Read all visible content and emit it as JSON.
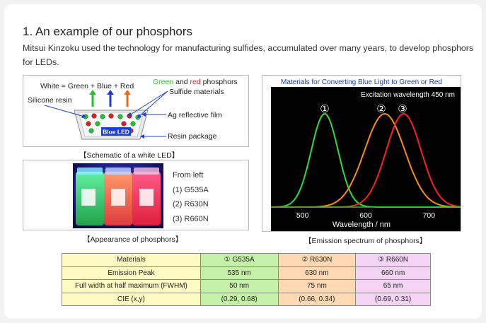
{
  "header": {
    "title": "1. An example of our phosphors",
    "description": "Mitsui Kinzoku used the technology for manufacturing sulfides, accumulated over many years, to develop phosphors for LEDs."
  },
  "schematic": {
    "white_formula": "White = Green + Blue + Red",
    "phosphor_label_green": "Green",
    "phosphor_label_and": " and ",
    "phosphor_label_red": "red",
    "phosphor_label_rest": " phosphors",
    "sulfide_label": "Sulfide materials",
    "silicone_label": "Silicone resin",
    "ag_label": "Ag reflective film",
    "resin_label": "Resin package",
    "led_label": "Blue LED",
    "caption": "【Schematic of a white LED】",
    "colors": {
      "green": "#2bbf2b",
      "red": "#e02020",
      "blue": "#1a3fd6",
      "orange": "#f06a1a"
    }
  },
  "appearance": {
    "heading": "From left",
    "items": [
      "(1) G535A",
      "(2) R630N",
      "(3) R660N"
    ],
    "caption": "【Appearance of phosphors】"
  },
  "spectrum": {
    "title": "Materials for Converting Blue Light to Green or Red",
    "excitation": "Excitation wavelength 450 nm",
    "caption": "【Emission spectrum of phosphors】",
    "marker_1": "①",
    "marker_2": "②",
    "marker_3": "③"
  },
  "chart_data": {
    "type": "line",
    "title": "Materials for Converting Blue Light to Green or Red",
    "xlabel": "Wavelength / nm",
    "ylabel": "",
    "xlim": [
      450,
      750
    ],
    "x_ticks": [
      500,
      600,
      700
    ],
    "x_tick_labels": [
      "500",
      "600",
      "700"
    ],
    "grid": false,
    "background": "#000000",
    "series": [
      {
        "name": "①",
        "peak_nm": 535,
        "fwhm_nm": 50,
        "color": "#33dd33"
      },
      {
        "name": "②",
        "peak_nm": 630,
        "fwhm_nm": 75,
        "color": "#ff8c1a"
      },
      {
        "name": "③",
        "peak_nm": 660,
        "fwhm_nm": 65,
        "color": "#ff2020"
      }
    ]
  },
  "table": {
    "header": [
      "Materials",
      "① G535A",
      "② R630N",
      "③ R660N"
    ],
    "rows": [
      [
        "Emission Peak",
        "535 nm",
        "630 nm",
        "660 nm"
      ],
      [
        "Full width at half maximum (FWHM)",
        "50 nm",
        "75 nm",
        "65 nm"
      ],
      [
        "CIE (x,y)",
        "(0.29, 0.68)",
        "(0.66, 0.34)",
        "(0.69, 0.31)"
      ]
    ]
  }
}
